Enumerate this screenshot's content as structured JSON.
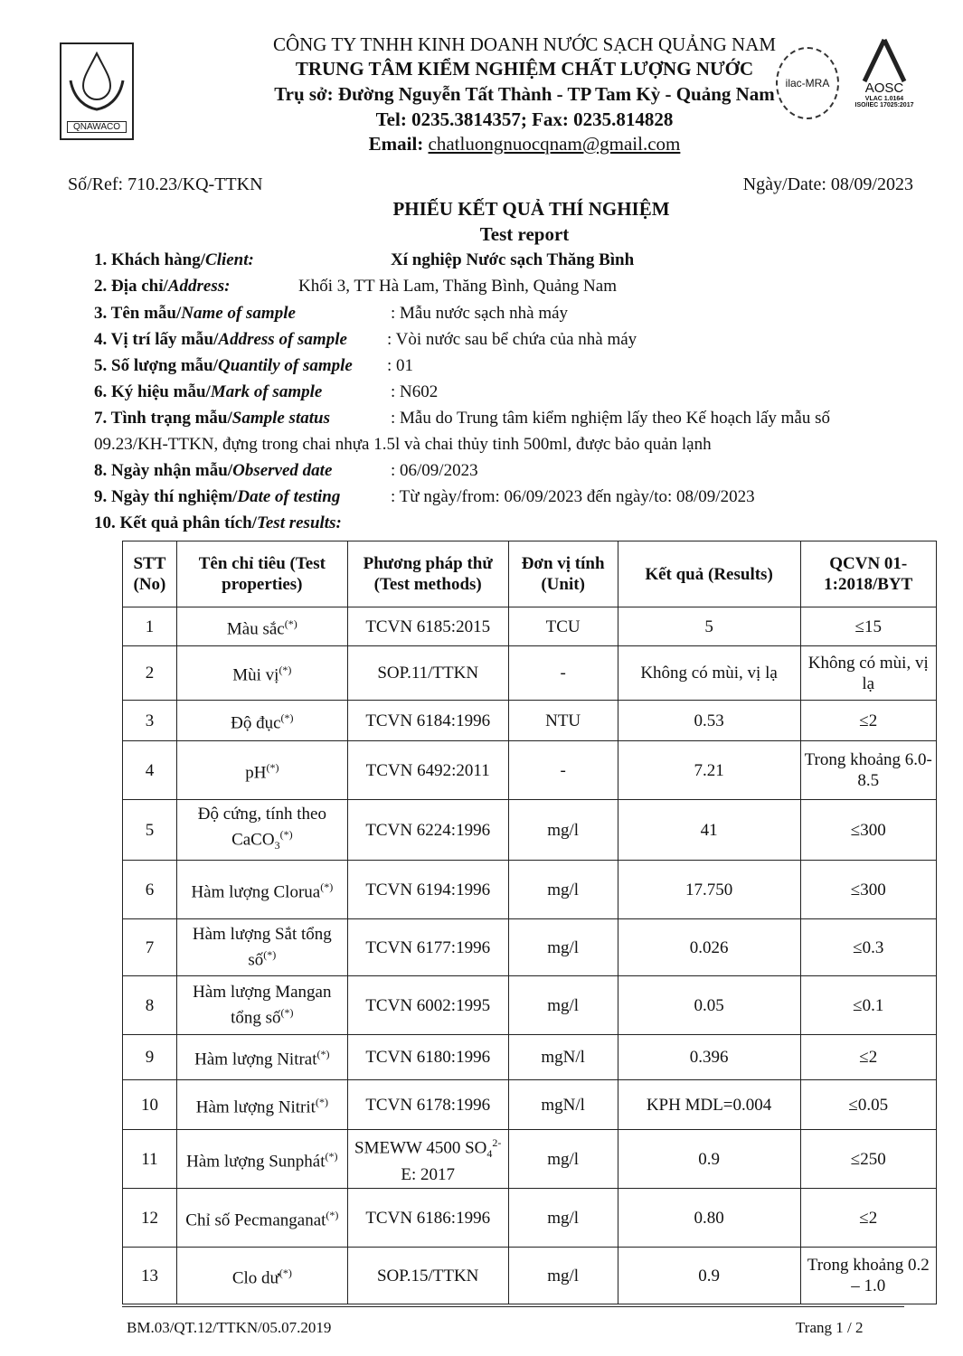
{
  "header": {
    "logo_text": "QNAWACO",
    "company": "CÔNG TY TNHH KINH DOANH NƯỚC SẠCH QUẢNG NAM",
    "center": "TRUNG TÂM KIỂM NGHIỆM CHẤT LƯỢNG NƯỚC",
    "address": "Trụ sở: Đường Nguyễn Tất Thành - TP Tam Kỳ -  Quảng Nam",
    "tel": "Tel: 0235.3814357; Fax: 0235.814828",
    "email_label": "Email:",
    "email": "chatluongnuocqnam@gmail.com",
    "accreditation": {
      "ilac": "ilac-MRA",
      "aosc": "AOSC",
      "vilas": "VLAC 1.0164",
      "iso": "ISO/IEC 17025:2017"
    }
  },
  "ref": "Số/Ref: 710.23/KQ-TTKN",
  "date": "Ngày/Date: 08/09/2023",
  "title": "PHIẾU KẾT QUẢ THÍ NGHIỆM",
  "subtitle": "Test report",
  "info": [
    {
      "label": "1. Khách hàng/",
      "label_en": "Client:",
      "value": "Xí nghiệp Nước sạch Thăng Bình"
    },
    {
      "label": "2. Địa chỉ/",
      "label_en": "Address:",
      "value": "Khối 3, TT Hà Lam, Thăng Bình, Quảng Nam"
    },
    {
      "label": "3. Tên mẫu/",
      "label_en": "Name of sample",
      "value": ": Mẫu nước sạch nhà máy"
    },
    {
      "label": "4. Vị trí lấy mẫu/",
      "label_en": "Address of sample",
      "value": ": Vòi nước sau bể chứa của nhà máy"
    },
    {
      "label": "5. Số lượng mẫu/",
      "label_en": "Quantily of sample",
      "value": ": 01"
    },
    {
      "label": "6. Ký hiệu mẫu/",
      "label_en": "Mark of sample",
      "value": ": N602"
    },
    {
      "label": "7. Tình trạng mẫu/",
      "label_en": "Sample status",
      "value": ": Mẫu do Trung tâm kiểm nghiệm lấy theo Kế hoạch lấy mẫu số"
    },
    {
      "label": "",
      "label_en": "",
      "value": "09.23/KH-TTKN, đựng trong chai nhựa 1.5l và chai thủy tinh 500ml, được bảo quản lạnh"
    },
    {
      "label": "8. Ngày nhận mẫu/",
      "label_en": "Observed date",
      "value": ": 06/09/2023"
    },
    {
      "label": "9. Ngày thí nghiệm/",
      "label_en": "Date of testing",
      "value": ": Từ ngày/from: 06/09/2023  đến ngày/to: 08/09/2023"
    },
    {
      "label": "10. Kết quả phân tích/",
      "label_en": "Test results:",
      "value": ""
    }
  ],
  "table": {
    "headers": [
      "STT (No)",
      "Tên chỉ tiêu (Test properties)",
      "Phương pháp thử (Test methods)",
      "Đơn vị tính (Unit)",
      "Kết quả (Results)",
      "QCVN 01-1:2018/BYT"
    ],
    "rows": [
      {
        "no": "1",
        "name": "Màu sắc",
        "mark": "(*)",
        "method": "TCVN 6185:2015",
        "unit": "TCU",
        "result": "5",
        "limit": "≤15"
      },
      {
        "no": "2",
        "name": "Mùi vị",
        "mark": "(*)",
        "method": "SOP.11/TTKN",
        "unit": "-",
        "result": "Không có mùi, vị lạ",
        "limit": "Không có mùi, vị lạ"
      },
      {
        "no": "3",
        "name": "Độ đục",
        "mark": "(*)",
        "method": "TCVN 6184:1996",
        "unit": "NTU",
        "result": "0.53",
        "limit": "≤2"
      },
      {
        "no": "4",
        "name": "pH",
        "mark": "(*)",
        "method": "TCVN 6492:2011",
        "unit": "-",
        "result": "7.21",
        "limit": "Trong khoảng 6.0-8.5"
      },
      {
        "no": "5",
        "name": "Độ cứng, tính theo CaCO",
        "name_sub": "3",
        "mark": "(*)",
        "method": "TCVN 6224:1996",
        "unit": "mg/l",
        "result": "41",
        "limit": "≤300"
      },
      {
        "no": "6",
        "name": "Hàm lượng Clorua",
        "mark": "(*)",
        "method": "TCVN 6194:1996",
        "unit": "mg/l",
        "result": "17.750",
        "limit": "≤300"
      },
      {
        "no": "7",
        "name": "Hàm lượng Sắt tổng số",
        "mark": "(*)",
        "method": "TCVN 6177:1996",
        "unit": "mg/l",
        "result": "0.026",
        "limit": "≤0.3"
      },
      {
        "no": "8",
        "name": "Hàm lượng Mangan tổng số",
        "mark": "(*)",
        "method": "TCVN 6002:1995",
        "unit": "mg/l",
        "result": "0.05",
        "limit": "≤0.1"
      },
      {
        "no": "9",
        "name": "Hàm lượng Nitrat",
        "mark": "(*)",
        "method": "TCVN 6180:1996",
        "unit": "mgN/l",
        "result": "0.396",
        "limit": "≤2"
      },
      {
        "no": "10",
        "name": "Hàm lượng Nitrit",
        "mark": "(*)",
        "method": "TCVN 6178:1996",
        "unit": "mgN/l",
        "result": "KPH MDL=0.004",
        "limit": "≤0.05"
      },
      {
        "no": "11",
        "name": "Hàm lượng Sunphát",
        "mark": "(*)",
        "method": "SMEWW 4500 SO",
        "method_sub": "4",
        "method_sup": "2-",
        "method_tail": " E: 2017",
        "unit": "mg/l",
        "result": "0.9",
        "limit": "≤250"
      },
      {
        "no": "12",
        "name": "Chỉ số Pecmanganat",
        "mark": "(*)",
        "method": "TCVN 6186:1996",
        "unit": "mg/l",
        "result": "0.80",
        "limit": "≤2"
      },
      {
        "no": "13",
        "name": "Clo dư",
        "mark": "(*)",
        "method": "SOP.15/TTKN",
        "unit": "mg/l",
        "result": "0.9",
        "limit": "Trong khoảng 0.2 – 1.0"
      }
    ]
  },
  "footer": {
    "form": "BM.03/QT.12/TTKN/05.07.2019",
    "page": "Trang 1 / 2"
  }
}
